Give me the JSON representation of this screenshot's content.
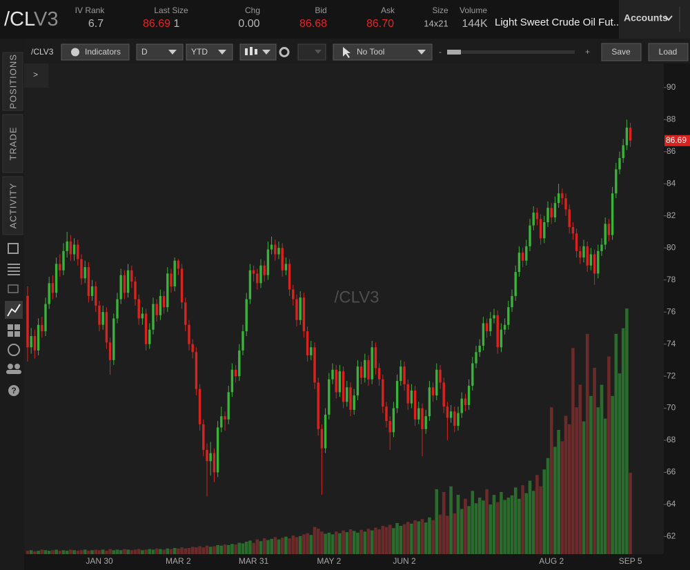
{
  "header": {
    "symbol_root": "/CL",
    "symbol_month": "V3",
    "fields": [
      {
        "label": "IV Rank",
        "value": "6.7"
      },
      {
        "label": "Last Size",
        "value": "86.69",
        "size": "1"
      },
      {
        "label": "Chg",
        "value": "0.00"
      },
      {
        "label": "Bid",
        "value": "86.68"
      },
      {
        "label": "Ask",
        "value": "86.70"
      },
      {
        "label": "Size",
        "value": "14x21"
      },
      {
        "label": "Volume",
        "value": "144K"
      }
    ],
    "description": "Light Sweet Crude Oil Fut...",
    "accounts": "Accounts"
  },
  "toolbar": {
    "symbol": "/CLV3",
    "indicators": "Indicators",
    "aggregation": "D",
    "range": "YTD",
    "tool": "No Tool",
    "zoom_out": "-",
    "zoom_in": "+",
    "save": "Save",
    "load": "Load",
    "expand": ">"
  },
  "sidebar": {
    "tabs": [
      "POSITIONS",
      "TRADE",
      "ACTIVITY"
    ]
  },
  "chart_data": {
    "type": "candlestick",
    "watermark": "/CLV3",
    "up_color": "#3bb33a",
    "down_color": "#d9231f",
    "volume_up_color": "#2c6b2e",
    "volume_down_color": "#6b2b2b",
    "ylim": [
      60.9,
      91.5
    ],
    "yticks": [
      62,
      64,
      66,
      68,
      70,
      72,
      74,
      76,
      78,
      80,
      82,
      84,
      86,
      88,
      90
    ],
    "categories": [
      null,
      null,
      null,
      null,
      null,
      null,
      null,
      null,
      null,
      null,
      null,
      null,
      null,
      null,
      null,
      null,
      null,
      null,
      null,
      null,
      "JAN 30",
      null,
      null,
      null,
      null,
      null,
      null,
      null,
      null,
      null,
      null,
      null,
      null,
      null,
      null,
      null,
      null,
      null,
      null,
      null,
      null,
      null,
      "MAR 2",
      null,
      null,
      null,
      null,
      null,
      null,
      null,
      null,
      null,
      null,
      null,
      null,
      null,
      null,
      null,
      null,
      null,
      null,
      null,
      null,
      "MAR 31",
      null,
      null,
      null,
      null,
      null,
      null,
      null,
      null,
      null,
      null,
      null,
      null,
      null,
      null,
      null,
      null,
      null,
      null,
      null,
      null,
      "MAY 2",
      null,
      null,
      null,
      null,
      null,
      null,
      null,
      null,
      null,
      null,
      null,
      null,
      null,
      null,
      null,
      null,
      null,
      null,
      null,
      null,
      "JUN 2",
      null,
      null,
      null,
      null,
      null,
      null,
      null,
      null,
      null,
      null,
      null,
      null,
      null,
      null,
      null,
      null,
      null,
      null,
      null,
      null,
      null,
      null,
      null,
      null,
      null,
      null,
      null,
      null,
      null,
      null,
      null,
      null,
      null,
      null,
      null,
      null,
      null,
      null,
      null,
      null,
      "AUG 2",
      null,
      null,
      null,
      null,
      null,
      null,
      null,
      null,
      null,
      null,
      null,
      null,
      null,
      null,
      null,
      null,
      null,
      null,
      null,
      null,
      null,
      "SEP 5"
    ],
    "ohlc": [
      [
        77.0,
        77.6,
        72.9,
        73.8
      ],
      [
        73.8,
        75.0,
        73.4,
        74.5
      ],
      [
        74.5,
        74.9,
        73.1,
        73.6
      ],
      [
        73.6,
        75.6,
        73.3,
        75.2
      ],
      [
        75.2,
        75.7,
        74.4,
        74.8
      ],
      [
        74.8,
        76.9,
        74.5,
        76.5
      ],
      [
        76.5,
        78.2,
        76.2,
        77.8
      ],
      [
        77.8,
        78.3,
        76.8,
        77.2
      ],
      [
        77.2,
        79.4,
        76.9,
        79.0
      ],
      [
        79.0,
        79.6,
        78.2,
        78.6
      ],
      [
        78.6,
        80.3,
        78.3,
        79.8
      ],
      [
        79.8,
        81.0,
        79.4,
        80.4
      ],
      [
        80.4,
        80.8,
        79.2,
        79.6
      ],
      [
        79.6,
        80.6,
        79.2,
        80.2
      ],
      [
        80.2,
        80.5,
        78.9,
        79.3
      ],
      [
        79.3,
        79.6,
        77.7,
        78.1
      ],
      [
        78.1,
        79.2,
        77.8,
        78.8
      ],
      [
        78.8,
        79.1,
        76.6,
        77.0
      ],
      [
        77.0,
        78.0,
        76.7,
        77.6
      ],
      [
        77.6,
        77.9,
        76.0,
        76.4
      ],
      [
        76.4,
        76.7,
        74.8,
        75.2
      ],
      [
        75.2,
        76.4,
        74.9,
        76.0
      ],
      [
        76.0,
        76.3,
        73.7,
        74.1
      ],
      [
        74.1,
        74.4,
        72.1,
        73.0
      ],
      [
        73.0,
        75.9,
        72.7,
        75.6
      ],
      [
        75.6,
        77.2,
        75.3,
        76.8
      ],
      [
        76.8,
        78.7,
        76.5,
        78.3
      ],
      [
        78.3,
        78.6,
        76.8,
        77.2
      ],
      [
        77.2,
        79.0,
        76.9,
        78.6
      ],
      [
        78.6,
        78.9,
        77.5,
        77.9
      ],
      [
        77.9,
        78.2,
        76.4,
        76.8
      ],
      [
        76.8,
        77.1,
        75.2,
        75.6
      ],
      [
        75.6,
        76.3,
        75.2,
        75.9
      ],
      [
        75.9,
        76.2,
        73.6,
        74.0
      ],
      [
        74.0,
        75.3,
        73.7,
        74.9
      ],
      [
        74.9,
        76.9,
        74.6,
        76.5
      ],
      [
        76.5,
        76.8,
        75.4,
        75.8
      ],
      [
        75.8,
        77.4,
        75.5,
        77.0
      ],
      [
        77.0,
        77.3,
        75.9,
        76.3
      ],
      [
        76.3,
        78.8,
        76.0,
        78.4
      ],
      [
        78.4,
        78.7,
        77.2,
        77.6
      ],
      [
        77.6,
        79.4,
        77.3,
        79.2
      ],
      [
        79.2,
        79.3,
        78.3,
        78.7
      ],
      [
        78.7,
        79.0,
        76.2,
        76.6
      ],
      [
        76.6,
        76.9,
        74.8,
        75.2
      ],
      [
        75.2,
        75.5,
        73.6,
        74.0
      ],
      [
        74.0,
        74.3,
        73.1,
        73.5
      ],
      [
        73.5,
        73.8,
        70.8,
        71.2
      ],
      [
        71.2,
        71.5,
        68.6,
        69.0
      ],
      [
        69.0,
        69.3,
        67.0,
        67.4
      ],
      [
        67.4,
        67.8,
        64.5,
        66.7
      ],
      [
        66.7,
        67.9,
        65.8,
        67.2
      ],
      [
        67.2,
        67.5,
        65.4,
        66.0
      ],
      [
        66.0,
        69.2,
        65.7,
        68.8
      ],
      [
        68.8,
        70.1,
        68.5,
        69.5
      ],
      [
        69.5,
        69.8,
        68.6,
        69.3
      ],
      [
        69.3,
        71.4,
        69.0,
        71.0
      ],
      [
        71.0,
        72.8,
        70.7,
        72.4
      ],
      [
        72.4,
        72.7,
        71.6,
        72.0
      ],
      [
        72.0,
        74.0,
        71.7,
        73.6
      ],
      [
        73.6,
        75.2,
        73.3,
        74.8
      ],
      [
        74.8,
        77.2,
        74.5,
        76.8
      ],
      [
        76.8,
        79.0,
        76.5,
        78.6
      ],
      [
        78.6,
        78.9,
        77.9,
        78.4
      ],
      [
        78.4,
        78.7,
        77.4,
        77.8
      ],
      [
        77.8,
        79.3,
        77.5,
        78.9
      ],
      [
        78.9,
        79.2,
        77.9,
        78.3
      ],
      [
        78.3,
        80.4,
        78.0,
        79.9
      ],
      [
        79.9,
        80.7,
        79.6,
        80.2
      ],
      [
        80.2,
        80.5,
        79.2,
        79.6
      ],
      [
        79.6,
        80.4,
        79.3,
        80.0
      ],
      [
        80.0,
        80.3,
        78.2,
        78.6
      ],
      [
        78.6,
        79.4,
        78.3,
        79.0
      ],
      [
        79.0,
        79.3,
        77.0,
        77.4
      ],
      [
        77.4,
        77.7,
        76.4,
        76.8
      ],
      [
        76.8,
        77.1,
        75.1,
        75.5
      ],
      [
        75.5,
        77.3,
        75.2,
        76.9
      ],
      [
        76.9,
        77.2,
        74.4,
        74.8
      ],
      [
        74.8,
        75.1,
        72.9,
        73.3
      ],
      [
        73.3,
        74.2,
        73.0,
        73.8
      ],
      [
        73.8,
        74.1,
        71.2,
        71.6
      ],
      [
        71.6,
        71.9,
        68.3,
        68.7
      ],
      [
        68.7,
        69.0,
        64.6,
        67.5
      ],
      [
        67.5,
        70.0,
        67.2,
        69.6
      ],
      [
        69.6,
        72.2,
        69.3,
        71.8
      ],
      [
        71.8,
        72.8,
        71.5,
        72.4
      ],
      [
        72.4,
        72.7,
        70.6,
        71.0
      ],
      [
        71.0,
        72.7,
        70.7,
        72.3
      ],
      [
        72.3,
        72.6,
        70.0,
        70.4
      ],
      [
        70.4,
        71.7,
        70.1,
        71.3
      ],
      [
        71.3,
        71.6,
        69.5,
        69.9
      ],
      [
        69.9,
        71.2,
        69.6,
        70.8
      ],
      [
        70.8,
        73.0,
        70.5,
        72.6
      ],
      [
        72.6,
        72.9,
        71.5,
        71.9
      ],
      [
        71.9,
        73.4,
        71.6,
        73.0
      ],
      [
        73.0,
        73.3,
        71.4,
        71.8
      ],
      [
        71.8,
        74.2,
        71.5,
        73.8
      ],
      [
        73.8,
        74.1,
        72.1,
        72.5
      ],
      [
        72.5,
        72.8,
        71.4,
        71.8
      ],
      [
        71.8,
        72.1,
        69.7,
        70.1
      ],
      [
        70.1,
        70.4,
        68.8,
        69.2
      ],
      [
        69.2,
        69.5,
        67.4,
        68.5
      ],
      [
        68.5,
        70.4,
        68.2,
        70.0
      ],
      [
        70.0,
        72.1,
        69.7,
        71.7
      ],
      [
        71.7,
        73.0,
        71.4,
        72.6
      ],
      [
        72.6,
        72.9,
        71.1,
        71.5
      ],
      [
        71.5,
        71.8,
        69.9,
        70.3
      ],
      [
        70.3,
        71.5,
        70.0,
        71.1
      ],
      [
        71.1,
        71.4,
        68.9,
        69.3
      ],
      [
        69.3,
        70.4,
        69.0,
        70.0
      ],
      [
        70.0,
        70.3,
        67.0,
        68.7
      ],
      [
        68.7,
        69.9,
        68.4,
        69.5
      ],
      [
        69.5,
        71.7,
        69.2,
        71.3
      ],
      [
        71.3,
        71.6,
        70.4,
        70.8
      ],
      [
        70.8,
        72.8,
        70.5,
        72.4
      ],
      [
        72.4,
        72.7,
        71.2,
        71.6
      ],
      [
        71.6,
        71.9,
        69.7,
        70.1
      ],
      [
        70.1,
        70.4,
        68.0,
        69.4
      ],
      [
        69.4,
        70.2,
        69.1,
        69.8
      ],
      [
        69.8,
        70.1,
        68.5,
        68.9
      ],
      [
        68.9,
        70.1,
        68.6,
        69.7
      ],
      [
        69.7,
        71.0,
        69.4,
        70.6
      ],
      [
        70.6,
        70.9,
        69.8,
        70.2
      ],
      [
        70.2,
        71.8,
        69.9,
        71.4
      ],
      [
        71.4,
        73.2,
        71.1,
        72.8
      ],
      [
        72.8,
        73.9,
        72.5,
        73.5
      ],
      [
        73.5,
        74.3,
        73.2,
        73.9
      ],
      [
        73.9,
        75.7,
        73.6,
        75.3
      ],
      [
        75.3,
        75.6,
        74.4,
        74.8
      ],
      [
        74.8,
        76.0,
        74.5,
        75.6
      ],
      [
        75.6,
        76.2,
        75.3,
        75.8
      ],
      [
        75.8,
        76.1,
        73.4,
        73.8
      ],
      [
        73.8,
        75.3,
        73.5,
        74.9
      ],
      [
        74.9,
        75.6,
        74.6,
        75.2
      ],
      [
        75.2,
        76.7,
        74.9,
        76.3
      ],
      [
        76.3,
        77.4,
        76.0,
        77.0
      ],
      [
        77.0,
        78.9,
        76.7,
        78.5
      ],
      [
        78.5,
        80.1,
        78.2,
        79.7
      ],
      [
        79.7,
        80.0,
        78.8,
        79.2
      ],
      [
        79.2,
        80.5,
        78.9,
        80.1
      ],
      [
        80.1,
        81.8,
        79.8,
        81.4
      ],
      [
        81.4,
        82.6,
        81.1,
        82.2
      ],
      [
        82.2,
        82.5,
        81.4,
        81.8
      ],
      [
        81.8,
        82.1,
        80.2,
        80.6
      ],
      [
        80.6,
        82.0,
        80.3,
        81.6
      ],
      [
        81.6,
        82.9,
        81.3,
        82.5
      ],
      [
        82.5,
        82.8,
        81.5,
        81.9
      ],
      [
        81.9,
        83.2,
        81.6,
        82.8
      ],
      [
        82.8,
        84.0,
        82.5,
        83.4
      ],
      [
        83.4,
        83.7,
        82.7,
        83.1
      ],
      [
        83.1,
        83.4,
        82.0,
        82.4
      ],
      [
        82.4,
        82.7,
        80.9,
        81.3
      ],
      [
        81.3,
        81.6,
        80.5,
        80.9
      ],
      [
        80.9,
        81.2,
        79.4,
        79.8
      ],
      [
        79.8,
        80.1,
        79.0,
        79.4
      ],
      [
        79.4,
        80.5,
        79.1,
        80.1
      ],
      [
        80.1,
        80.4,
        78.5,
        78.9
      ],
      [
        78.9,
        80.0,
        78.6,
        79.6
      ],
      [
        79.6,
        79.9,
        77.7,
        78.4
      ],
      [
        78.4,
        80.2,
        78.1,
        79.8
      ],
      [
        79.8,
        80.6,
        79.5,
        80.2
      ],
      [
        80.2,
        81.9,
        79.9,
        81.5
      ],
      [
        81.5,
        81.8,
        80.4,
        80.8
      ],
      [
        80.8,
        83.8,
        80.5,
        83.4
      ],
      [
        83.4,
        85.3,
        83.1,
        84.9
      ],
      [
        84.9,
        86.0,
        84.6,
        85.6
      ],
      [
        85.6,
        86.8,
        85.3,
        86.4
      ],
      [
        86.4,
        88.0,
        86.1,
        87.5
      ],
      [
        87.5,
        87.8,
        86.3,
        86.69
      ]
    ],
    "volume": [
      6,
      7,
      5,
      6,
      8,
      7,
      6,
      7,
      8,
      6,
      7,
      6,
      8,
      7,
      6,
      7,
      8,
      6,
      7,
      8,
      7,
      8,
      6,
      9,
      7,
      8,
      7,
      9,
      8,
      7,
      8,
      9,
      7,
      8,
      9,
      8,
      10,
      9,
      8,
      10,
      9,
      11,
      10,
      12,
      10,
      11,
      13,
      12,
      14,
      12,
      15,
      13,
      14,
      16,
      15,
      17,
      16,
      18,
      17,
      20,
      19,
      22,
      24,
      20,
      26,
      23,
      28,
      25,
      27,
      30,
      26,
      29,
      31,
      28,
      33,
      30,
      32,
      35,
      37,
      34,
      48,
      45,
      40,
      36,
      38,
      35,
      40,
      37,
      42,
      39,
      44,
      41,
      38,
      43,
      40,
      45,
      42,
      47,
      44,
      50,
      48,
      52,
      46,
      55,
      50,
      53,
      57,
      54,
      60,
      58,
      62,
      56,
      65,
      60,
      115,
      70,
      110,
      68,
      120,
      72,
      105,
      80,
      98,
      85,
      112,
      90,
      100,
      95,
      115,
      88,
      105,
      92,
      110,
      96,
      100,
      104,
      118,
      98,
      122,
      108,
      130,
      112,
      140,
      120,
      150,
      170,
      260,
      190,
      220,
      200,
      245,
      230,
      365,
      260,
      300,
      235,
      390,
      280,
      330,
      260,
      300,
      240,
      350,
      280,
      390,
      320,
      400,
      435,
      144
    ]
  }
}
